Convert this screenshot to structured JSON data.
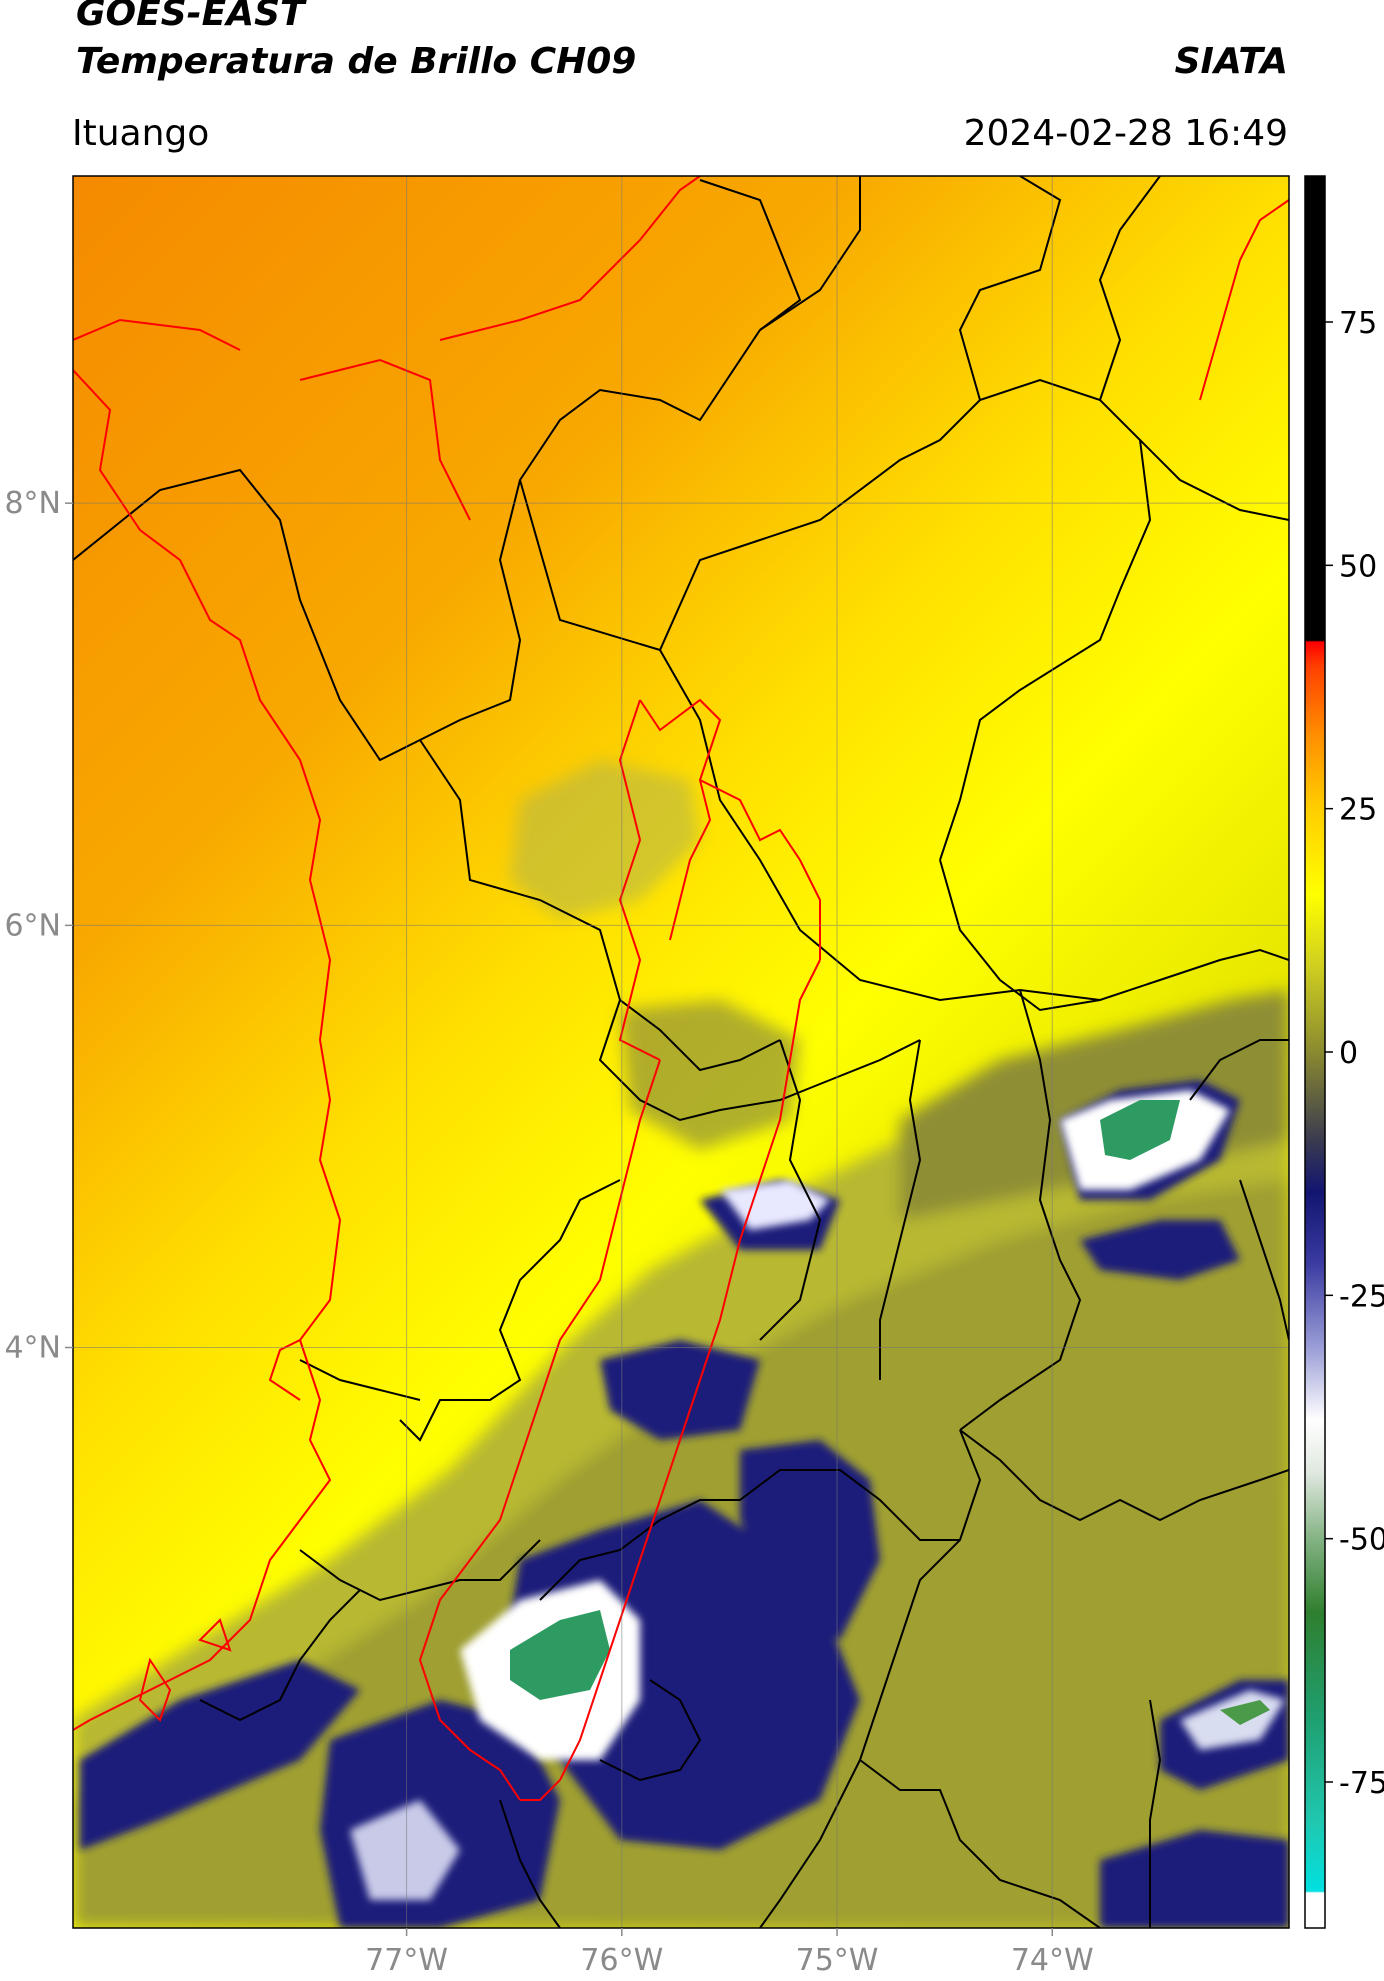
{
  "header": {
    "satellite": "GOES-EAST",
    "product": "Temperatura de Brillo CH09",
    "org": "SIATA",
    "region": "Ituango",
    "timestamp": "2024-02-28 16:49"
  },
  "map": {
    "lon_labels": [
      "77°W",
      "76°W",
      "75°W",
      "74°W"
    ],
    "lat_labels": [
      "8°N",
      "6°N",
      "4°N"
    ],
    "lon_values": [
      -77,
      -76,
      -75,
      -74
    ],
    "lat_values": [
      8,
      6,
      4
    ],
    "extent": {
      "lon_min": -78.55,
      "lon_max": -72.9,
      "lat_min": 1.25,
      "lat_max": 9.55
    },
    "colors": {
      "warm": "#f59a00",
      "mid": "#ffd400",
      "yellow": "#ffff00",
      "olive": "#a8a82a",
      "navy": "#1b1f7a",
      "white": "#ffffff",
      "green": "#2e9b62",
      "border_black": "#000000",
      "border_red": "#ff0000"
    }
  },
  "colorbar": {
    "ticks": [
      "75",
      "50",
      "25",
      "0",
      "-25",
      "-50",
      "-75"
    ],
    "values": [
      75,
      50,
      25,
      0,
      -25,
      -50,
      -75
    ],
    "vmin": -90,
    "vmax": 90,
    "icon": "temperature-colorbar"
  }
}
